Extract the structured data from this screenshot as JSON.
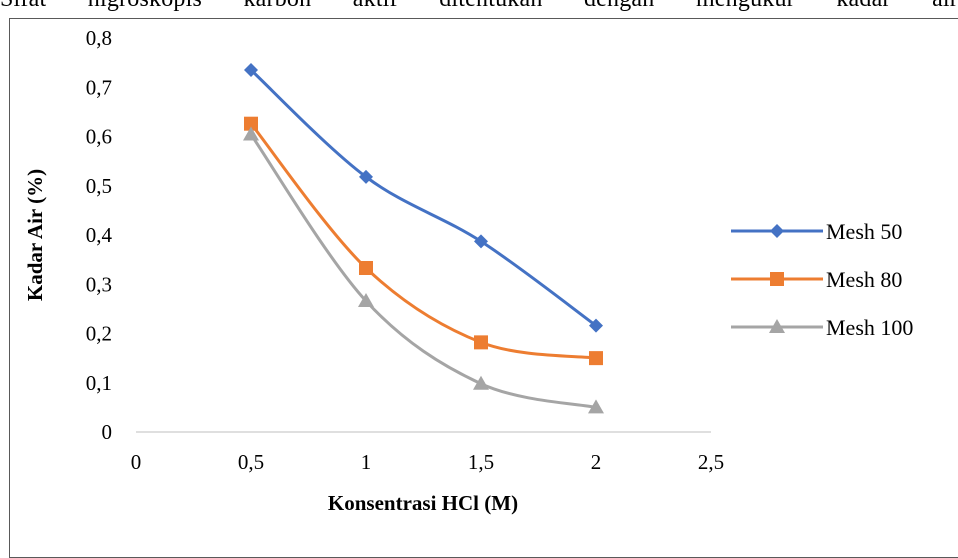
{
  "document": {
    "caption_fragment": "Sifat higroskopis karbon aktif ditentukan dengan mengukur kadar air"
  },
  "chart_data": {
    "type": "line",
    "title": "",
    "xlabel": "Konsentrasi HCl (M)",
    "ylabel": "Kadar Air (%)",
    "xlim": [
      0,
      2.5
    ],
    "ylim": [
      0,
      0.8
    ],
    "x_ticks": [
      "0",
      "0,5",
      "1",
      "1,5",
      "2",
      "2,5"
    ],
    "y_ticks": [
      "0",
      "0,1",
      "0,2",
      "0,3",
      "0,4",
      "0,5",
      "0,6",
      "0,7",
      "0,8"
    ],
    "x_tick_values": [
      0,
      0.5,
      1,
      1.5,
      2,
      2.5
    ],
    "y_tick_values": [
      0,
      0.1,
      0.2,
      0.3,
      0.4,
      0.5,
      0.6,
      0.7,
      0.8
    ],
    "x": [
      0.5,
      1,
      1.5,
      2
    ],
    "smooth": true,
    "grid": false,
    "legend_position": "right",
    "series": [
      {
        "name": "Mesh 50",
        "values": [
          0.735,
          0.518,
          0.387,
          0.216
        ],
        "color": "#4472C4",
        "marker": "diamond"
      },
      {
        "name": "Mesh 80",
        "values": [
          0.626,
          0.333,
          0.182,
          0.15
        ],
        "color": "#ED7D31",
        "marker": "square"
      },
      {
        "name": "Mesh 100",
        "values": [
          0.604,
          0.266,
          0.098,
          0.05
        ],
        "color": "#A5A5A5",
        "marker": "triangle"
      }
    ]
  }
}
